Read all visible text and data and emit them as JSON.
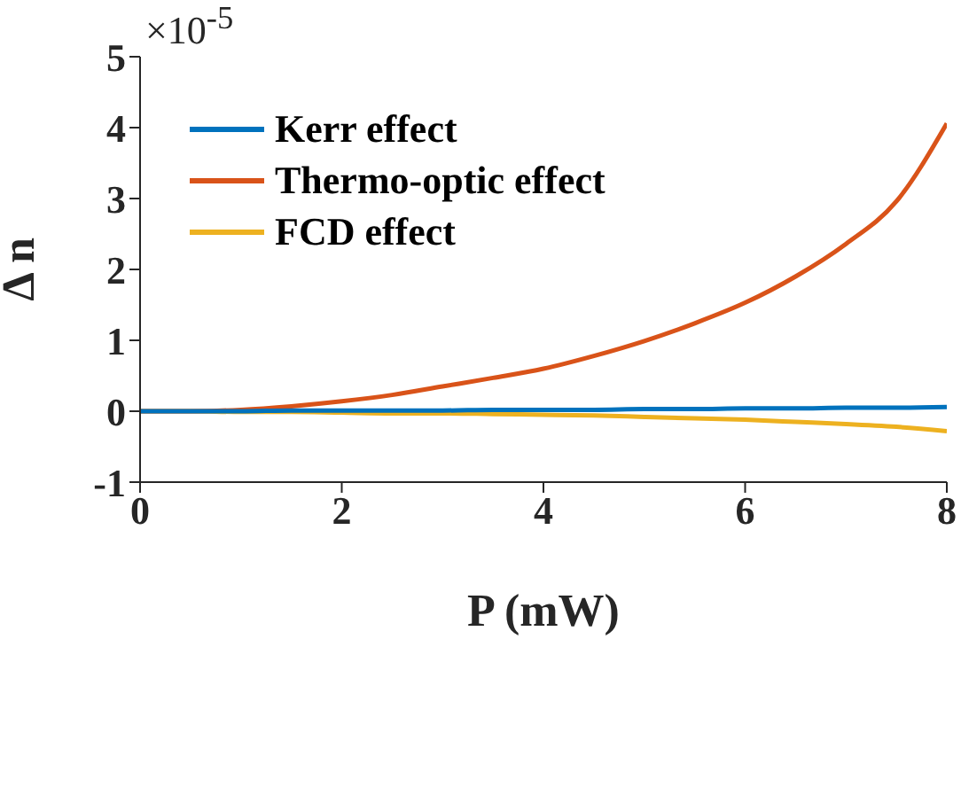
{
  "chart_data": {
    "type": "line",
    "xlabel": "P (mW)",
    "ylabel": "Δ n",
    "annotations": [
      "×10$^{-5}$"
    ],
    "x": [
      0,
      0.5,
      1,
      1.5,
      2,
      2.5,
      3,
      3.5,
      4,
      4.5,
      5,
      5.5,
      6,
      6.5,
      7,
      7.5,
      8
    ],
    "series": [
      {
        "name": "Kerr effect",
        "color": "#0072bd",
        "values": [
          0,
          0,
          0,
          0.01,
          0.01,
          0.01,
          0.01,
          0.02,
          0.02,
          0.02,
          0.03,
          0.03,
          0.04,
          0.04,
          0.05,
          0.05,
          0.06
        ]
      },
      {
        "name": "Thermo-optic effect",
        "color": "#d95319",
        "values": [
          0,
          0,
          0.02,
          0.07,
          0.14,
          0.23,
          0.35,
          0.47,
          0.6,
          0.78,
          0.99,
          1.24,
          1.53,
          1.9,
          2.36,
          2.96,
          4.06
        ]
      },
      {
        "name": "FCD effect",
        "color": "#edb120",
        "values": [
          0,
          0,
          -0.01,
          -0.01,
          -0.02,
          -0.03,
          -0.03,
          -0.04,
          -0.05,
          -0.06,
          -0.08,
          -0.1,
          -0.12,
          -0.15,
          -0.18,
          -0.22,
          -0.28
        ]
      }
    ],
    "xlim": [
      0,
      8
    ],
    "xticks": [
      0,
      2,
      4,
      6,
      8
    ],
    "ylim": [
      -1,
      5
    ],
    "yticks": [
      -1,
      0,
      1,
      2,
      3,
      4,
      5
    ],
    "legend": "top left",
    "grid": false,
    "marker": "none",
    "line_style": "solid"
  }
}
